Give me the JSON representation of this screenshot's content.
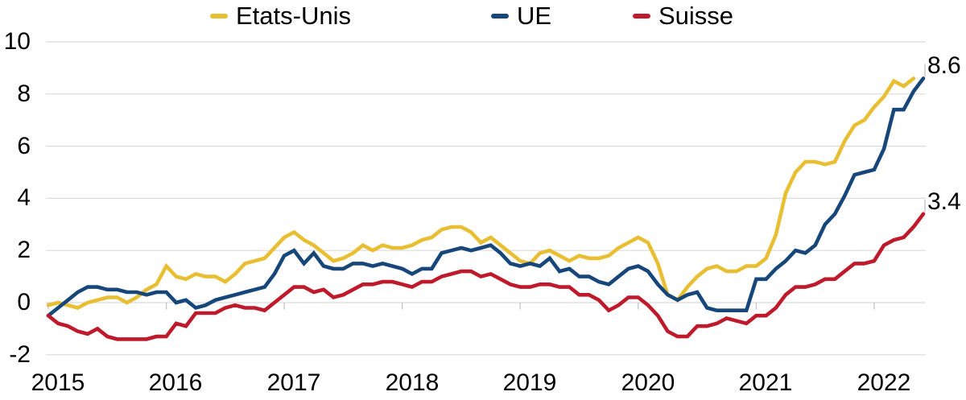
{
  "chart_data": {
    "type": "line",
    "title": "",
    "legend_position": "top",
    "grid": "horizontal",
    "x_axis": {
      "tick_labels": [
        "2015",
        "2016",
        "2017",
        "2018",
        "2019",
        "2020",
        "2021",
        "2022"
      ],
      "frequency": "monthly",
      "start": "2015-01",
      "end": "2022-06"
    },
    "y_axis": {
      "ticks": [
        10,
        8,
        6,
        4,
        2,
        0,
        -2
      ],
      "range": [
        -2,
        10
      ],
      "gridline_color": "#dbdbdb"
    },
    "series": [
      {
        "name": "Etats-Unis",
        "color": "#E8BE33",
        "values": [
          -0.1,
          0.0,
          -0.1,
          -0.2,
          0.0,
          0.1,
          0.2,
          0.2,
          0.0,
          0.2,
          0.5,
          0.7,
          1.4,
          1.0,
          0.9,
          1.1,
          1.0,
          1.0,
          0.8,
          1.1,
          1.5,
          1.6,
          1.7,
          2.1,
          2.5,
          2.7,
          2.4,
          2.2,
          1.9,
          1.6,
          1.7,
          1.9,
          2.2,
          2.0,
          2.2,
          2.1,
          2.1,
          2.2,
          2.4,
          2.5,
          2.8,
          2.9,
          2.9,
          2.7,
          2.3,
          2.5,
          2.2,
          1.9,
          1.6,
          1.5,
          1.9,
          2.0,
          1.8,
          1.6,
          1.8,
          1.7,
          1.7,
          1.8,
          2.1,
          2.3,
          2.5,
          2.3,
          1.5,
          0.3,
          0.1,
          0.6,
          1.0,
          1.3,
          1.4,
          1.2,
          1.2,
          1.4,
          1.4,
          1.7,
          2.6,
          4.2,
          5.0,
          5.4,
          5.4,
          5.3,
          5.4,
          6.2,
          6.8,
          7.0,
          7.5,
          7.9,
          8.5,
          8.3,
          8.6
        ]
      },
      {
        "name": "UE",
        "color": "#17477A",
        "values": [
          -0.5,
          -0.2,
          0.1,
          0.4,
          0.6,
          0.6,
          0.5,
          0.5,
          0.4,
          0.4,
          0.3,
          0.4,
          0.4,
          0.0,
          0.1,
          -0.2,
          -0.1,
          0.1,
          0.2,
          0.3,
          0.4,
          0.5,
          0.6,
          1.1,
          1.8,
          2.0,
          1.5,
          1.9,
          1.4,
          1.3,
          1.3,
          1.5,
          1.5,
          1.4,
          1.5,
          1.4,
          1.3,
          1.1,
          1.3,
          1.3,
          1.9,
          2.0,
          2.1,
          2.0,
          2.1,
          2.2,
          1.9,
          1.5,
          1.4,
          1.5,
          1.4,
          1.7,
          1.2,
          1.3,
          1.0,
          1.0,
          0.8,
          0.7,
          1.0,
          1.3,
          1.4,
          1.2,
          0.7,
          0.3,
          0.1,
          0.3,
          0.4,
          -0.2,
          -0.3,
          -0.3,
          -0.3,
          -0.3,
          0.9,
          0.9,
          1.3,
          1.6,
          2.0,
          1.9,
          2.2,
          3.0,
          3.4,
          4.1,
          4.9,
          5.0,
          5.1,
          5.9,
          7.4,
          7.4,
          8.1,
          8.6
        ]
      },
      {
        "name": "Suisse",
        "color": "#BF1A2B",
        "values": [
          -0.5,
          -0.8,
          -0.9,
          -1.1,
          -1.2,
          -1.0,
          -1.3,
          -1.4,
          -1.4,
          -1.4,
          -1.4,
          -1.3,
          -1.3,
          -0.8,
          -0.9,
          -0.4,
          -0.4,
          -0.4,
          -0.2,
          -0.1,
          -0.2,
          -0.2,
          -0.3,
          0.0,
          0.3,
          0.6,
          0.6,
          0.4,
          0.5,
          0.2,
          0.3,
          0.5,
          0.7,
          0.7,
          0.8,
          0.8,
          0.7,
          0.6,
          0.8,
          0.8,
          1.0,
          1.1,
          1.2,
          1.2,
          1.0,
          1.1,
          0.9,
          0.7,
          0.6,
          0.6,
          0.7,
          0.7,
          0.6,
          0.6,
          0.3,
          0.3,
          0.1,
          -0.3,
          -0.1,
          0.2,
          0.2,
          -0.1,
          -0.5,
          -1.1,
          -1.3,
          -1.3,
          -0.9,
          -0.9,
          -0.8,
          -0.6,
          -0.7,
          -0.8,
          -0.5,
          -0.5,
          -0.2,
          0.3,
          0.6,
          0.6,
          0.7,
          0.9,
          0.9,
          1.2,
          1.5,
          1.5,
          1.6,
          2.2,
          2.4,
          2.5,
          2.9,
          3.4
        ]
      }
    ],
    "annotations": [
      {
        "text": "8.6",
        "value": 8.6,
        "series": "UE"
      },
      {
        "text": "3.4",
        "value": 3.4,
        "series": "Suisse"
      }
    ]
  }
}
